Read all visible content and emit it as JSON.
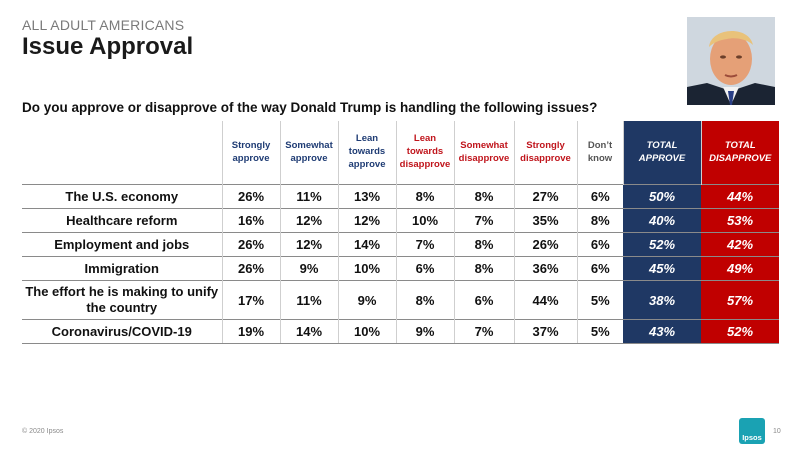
{
  "header": {
    "kicker": "ALL ADULT AMERICANS",
    "title": "Issue Approval",
    "question": "Do you approve or disapprove of the way Donald Trump is handling the following issues?"
  },
  "table": {
    "columns": [
      "Strongly approve",
      "Somewhat approve",
      "Lean towards approve",
      "Lean towards disapprove",
      "Somewhat disapprove",
      "Strongly disapprove",
      "Don’t know",
      "TOTAL APPROVE",
      "TOTAL DISAPPROVE"
    ],
    "rows": [
      {
        "label": "The U.S. economy",
        "values": [
          "26%",
          "11%",
          "13%",
          "8%",
          "8%",
          "27%",
          "6%",
          "50%",
          "44%"
        ]
      },
      {
        "label": "Healthcare reform",
        "values": [
          "16%",
          "12%",
          "12%",
          "10%",
          "7%",
          "35%",
          "8%",
          "40%",
          "53%"
        ]
      },
      {
        "label": "Employment and jobs",
        "values": [
          "26%",
          "12%",
          "14%",
          "7%",
          "8%",
          "26%",
          "6%",
          "52%",
          "42%"
        ]
      },
      {
        "label": "Immigration",
        "values": [
          "26%",
          "9%",
          "10%",
          "6%",
          "8%",
          "36%",
          "6%",
          "45%",
          "49%"
        ]
      },
      {
        "label": "The effort he is making to unify the country",
        "values": [
          "17%",
          "11%",
          "9%",
          "8%",
          "6%",
          "44%",
          "5%",
          "38%",
          "57%"
        ]
      },
      {
        "label": "Coronavirus/COVID-19",
        "values": [
          "19%",
          "14%",
          "10%",
          "9%",
          "7%",
          "37%",
          "5%",
          "43%",
          "52%"
        ]
      }
    ]
  },
  "footer": {
    "copyright": "© 2020 Ipsos",
    "logo": "Ipsos",
    "page": "10"
  },
  "colors": {
    "approve_text": "#1f3c74",
    "disapprove_text": "#c0151c",
    "total_approve_bg": "#1f3864",
    "total_disapprove_bg": "#c00000"
  }
}
